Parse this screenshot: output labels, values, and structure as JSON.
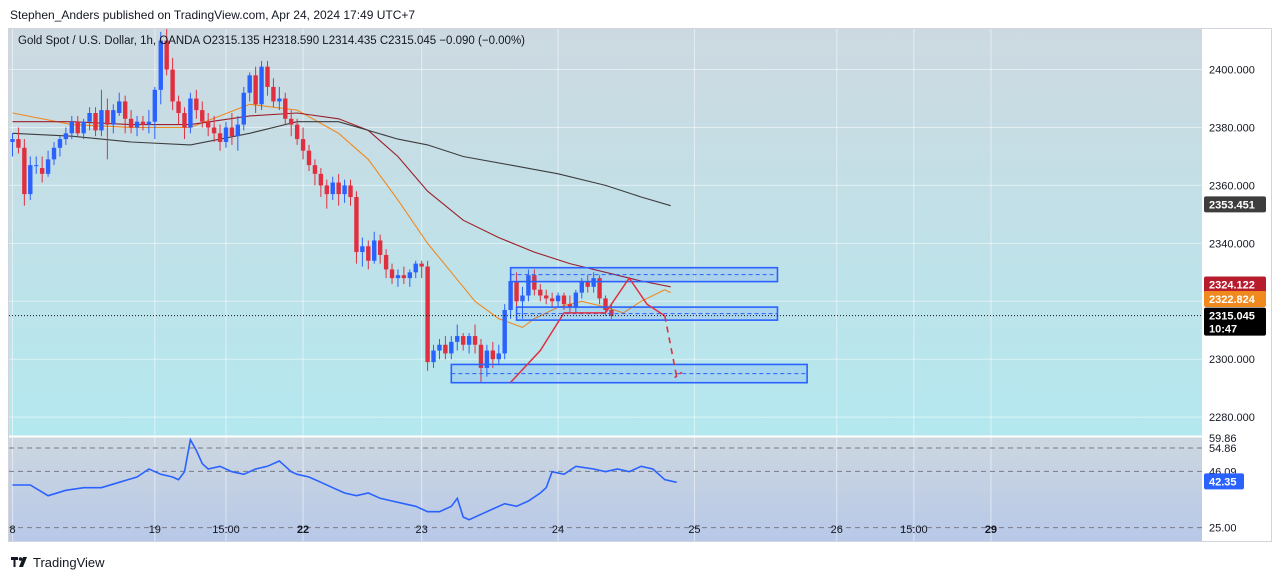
{
  "header": {
    "published_by": "Stephen_Anders published on TradingView.com, Apr 24, 2024 17:49 UTC+7"
  },
  "footer": {
    "brand": "TradingView",
    "logo_icon": "tradingview-logo-icon"
  },
  "colors": {
    "up": "#2962ff",
    "down": "#e03040",
    "ma_fast": "#f0891e",
    "ma_mid": "#9c1f2a",
    "ma_slow": "#3d3d3d",
    "rsi_line": "#2962ff",
    "zone": "#2962ff",
    "projection": "#e03040",
    "bg_top": "#cdd9e1",
    "bg_bottom": "#b4e8ef"
  },
  "chart_data": {
    "type": "line",
    "title": "Gold Spot / U.S. Dollar, 1h, OANDA",
    "ohlc_text": {
      "open": "O2315.135",
      "high": "H2318.590",
      "low": "L2314.435",
      "close": "C2315.045",
      "change": "−0.090 (−0.00%)"
    },
    "x_tick_labels": [
      {
        "i": 0,
        "label": "8",
        "bold": false
      },
      {
        "i": 24,
        "label": "19",
        "bold": false
      },
      {
        "i": 36,
        "label": "15:00",
        "bold": false
      },
      {
        "i": 49,
        "label": "22",
        "bold": true
      },
      {
        "i": 69,
        "label": "23",
        "bold": false
      },
      {
        "i": 92,
        "label": "24",
        "bold": false
      },
      {
        "i": 115,
        "label": "25",
        "bold": false
      },
      {
        "i": 139,
        "label": "26",
        "bold": false
      },
      {
        "i": 152,
        "label": "15:00",
        "bold": false
      },
      {
        "i": 165,
        "label": "29",
        "bold": true
      }
    ],
    "x_range": [
      0,
      180
    ],
    "y_range": [
      2273.5,
      2414
    ],
    "y_ticks": [
      2280,
      2300,
      2320,
      2340,
      2360,
      2380,
      2400
    ],
    "y_tick_labels": [
      "2280.000",
      "2300.000",
      "2320.000",
      "2340.000",
      "2360.000",
      "2380.000",
      "2400.000"
    ],
    "price_tags": [
      {
        "label": "2353.451",
        "value": 2353.451,
        "color": "#3d3d3d",
        "text_color": "#ffffff"
      },
      {
        "label": "2324.122",
        "value": 2325.8,
        "color": "#b71c2c",
        "text_color": "#ffffff"
      },
      {
        "label": "2322.824",
        "value": 2320.8,
        "color": "#f0891e",
        "text_color": "#ffffff"
      },
      {
        "label": "2315.045",
        "value": 2315.045,
        "color": "#000000",
        "text_color": "#ffffff",
        "sub": "10:47"
      }
    ],
    "current_price": 2315.045,
    "candles": [
      [
        2375,
        2378,
        2370,
        2376
      ],
      [
        2376,
        2380,
        2371,
        2373
      ],
      [
        2373,
        2376,
        2353,
        2357
      ],
      [
        2357,
        2370,
        2355,
        2367
      ],
      [
        2367,
        2370,
        2364,
        2367
      ],
      [
        2366,
        2370,
        2361,
        2364
      ],
      [
        2364,
        2372,
        2363,
        2369
      ],
      [
        2369,
        2375,
        2367,
        2373
      ],
      [
        2373,
        2377,
        2370,
        2376
      ],
      [
        2376,
        2380,
        2374,
        2378
      ],
      [
        2378,
        2384,
        2376,
        2382
      ],
      [
        2382,
        2384,
        2377,
        2378
      ],
      [
        2378,
        2383,
        2376,
        2382
      ],
      [
        2382,
        2387,
        2379,
        2385
      ],
      [
        2385,
        2387,
        2377,
        2379
      ],
      [
        2379,
        2393,
        2377,
        2386
      ],
      [
        2386,
        2390,
        2369,
        2381
      ],
      [
        2381,
        2388,
        2378,
        2386
      ],
      [
        2385,
        2392,
        2384,
        2389
      ],
      [
        2389,
        2391,
        2378,
        2383
      ],
      [
        2383,
        2386,
        2378,
        2380
      ],
      [
        2380,
        2384,
        2377,
        2382
      ],
      [
        2382,
        2384,
        2379,
        2381
      ],
      [
        2381,
        2386,
        2378,
        2382
      ],
      [
        2382,
        2394,
        2376,
        2393
      ],
      [
        2393,
        2413,
        2388,
        2410
      ],
      [
        2410,
        2416,
        2398,
        2400
      ],
      [
        2400,
        2404,
        2386,
        2389
      ],
      [
        2389,
        2391,
        2381,
        2385
      ],
      [
        2385,
        2387,
        2376,
        2380
      ],
      [
        2380,
        2392,
        2378,
        2390
      ],
      [
        2390,
        2393,
        2383,
        2386
      ],
      [
        2386,
        2389,
        2380,
        2382
      ],
      [
        2382,
        2385,
        2377,
        2380
      ],
      [
        2380,
        2384,
        2375,
        2378
      ],
      [
        2378,
        2381,
        2372,
        2375
      ],
      [
        2375,
        2382,
        2373,
        2380
      ],
      [
        2380,
        2385,
        2374,
        2377
      ],
      [
        2377,
        2384,
        2372,
        2381
      ],
      [
        2381,
        2394,
        2379,
        2392
      ],
      [
        2392,
        2399,
        2389,
        2398
      ],
      [
        2398,
        2401,
        2385,
        2388
      ],
      [
        2388,
        2403,
        2386,
        2401
      ],
      [
        2401,
        2403,
        2391,
        2394
      ],
      [
        2394,
        2397,
        2387,
        2389
      ],
      [
        2389,
        2394,
        2386,
        2390
      ],
      [
        2390,
        2392,
        2381,
        2383
      ],
      [
        2383,
        2386,
        2377,
        2381
      ],
      [
        2381,
        2383,
        2374,
        2376
      ],
      [
        2376,
        2380,
        2369,
        2372
      ],
      [
        2372,
        2374,
        2365,
        2367
      ],
      [
        2367,
        2369,
        2360,
        2364
      ],
      [
        2364,
        2366,
        2356,
        2360
      ],
      [
        2360,
        2362,
        2352,
        2357
      ],
      [
        2357,
        2363,
        2355,
        2361
      ],
      [
        2361,
        2364,
        2353,
        2357
      ],
      [
        2357,
        2362,
        2354,
        2360
      ],
      [
        2360,
        2362,
        2353,
        2356
      ],
      [
        2356,
        2358,
        2333,
        2337
      ],
      [
        2337,
        2342,
        2332,
        2339
      ],
      [
        2339,
        2341,
        2331,
        2334
      ],
      [
        2334,
        2344,
        2333,
        2341
      ],
      [
        2341,
        2343,
        2333,
        2336
      ],
      [
        2336,
        2338,
        2328,
        2331
      ],
      [
        2331,
        2333,
        2326,
        2328
      ],
      [
        2328,
        2331,
        2325,
        2329
      ],
      [
        2329,
        2332,
        2326,
        2328
      ],
      [
        2328,
        2331,
        2325,
        2330
      ],
      [
        2330,
        2334,
        2328,
        2333
      ],
      [
        2333,
        2334,
        2328,
        2332
      ],
      [
        2332,
        2334,
        2296,
        2299
      ],
      [
        2299,
        2305,
        2297,
        2303
      ],
      [
        2303,
        2307,
        2300,
        2305
      ],
      [
        2305,
        2308,
        2300,
        2302
      ],
      [
        2302,
        2308,
        2300,
        2306
      ],
      [
        2306,
        2312,
        2303,
        2308
      ],
      [
        2308,
        2309,
        2303,
        2305
      ],
      [
        2305,
        2309,
        2302,
        2308
      ],
      [
        2308,
        2312,
        2302,
        2305
      ],
      [
        2305,
        2307,
        2292,
        2297
      ],
      [
        2297,
        2305,
        2294,
        2303
      ],
      [
        2303,
        2306,
        2297,
        2300
      ],
      [
        2300,
        2305,
        2298,
        2302
      ],
      [
        2302,
        2319,
        2300,
        2317
      ],
      [
        2317,
        2330,
        2314,
        2327
      ],
      [
        2327,
        2330,
        2318,
        2320
      ],
      [
        2320,
        2325,
        2314,
        2322
      ],
      [
        2322,
        2331,
        2320,
        2329
      ],
      [
        2329,
        2331,
        2322,
        2324
      ],
      [
        2324,
        2326,
        2320,
        2322
      ],
      [
        2322,
        2324,
        2319,
        2321
      ],
      [
        2321,
        2323,
        2318,
        2320
      ],
      [
        2320,
        2323,
        2318,
        2322
      ],
      [
        2322,
        2323,
        2317,
        2319
      ],
      [
        2319,
        2322,
        2316,
        2318
      ],
      [
        2318,
        2324,
        2316,
        2323
      ],
      [
        2323,
        2328,
        2321,
        2327
      ],
      [
        2327,
        2329,
        2323,
        2325
      ],
      [
        2325,
        2330,
        2323,
        2328
      ],
      [
        2328,
        2329,
        2319,
        2321
      ],
      [
        2321,
        2322,
        2315,
        2317
      ],
      [
        2317,
        2319,
        2314,
        2315
      ]
    ],
    "series": [
      {
        "name": "",
        "style": "ma_fast",
        "points": [
          [
            0,
            2385
          ],
          [
            10,
            2381
          ],
          [
            20,
            2380
          ],
          [
            30,
            2380
          ],
          [
            40,
            2388
          ],
          [
            48,
            2386
          ],
          [
            55,
            2378
          ],
          [
            60,
            2369
          ],
          [
            65,
            2355
          ],
          [
            70,
            2340
          ],
          [
            74,
            2330
          ],
          [
            78,
            2320
          ],
          [
            82,
            2314
          ],
          [
            86,
            2311
          ],
          [
            88,
            2314
          ],
          [
            92,
            2318
          ],
          [
            96,
            2320
          ],
          [
            100,
            2318
          ],
          [
            103,
            2316
          ],
          [
            106,
            2320
          ],
          [
            110,
            2324
          ],
          [
            111,
            2323
          ]
        ]
      },
      {
        "name": "",
        "style": "ma_mid",
        "points": [
          [
            0,
            2382
          ],
          [
            10,
            2382
          ],
          [
            20,
            2381
          ],
          [
            30,
            2381
          ],
          [
            40,
            2384
          ],
          [
            48,
            2385
          ],
          [
            55,
            2383
          ],
          [
            60,
            2379
          ],
          [
            65,
            2370
          ],
          [
            70,
            2358
          ],
          [
            76,
            2348
          ],
          [
            82,
            2342
          ],
          [
            88,
            2337
          ],
          [
            94,
            2333
          ],
          [
            100,
            2330
          ],
          [
            106,
            2327
          ],
          [
            111,
            2325
          ]
        ]
      },
      {
        "name": "",
        "style": "ma_slow",
        "points": [
          [
            0,
            2378
          ],
          [
            10,
            2377
          ],
          [
            20,
            2375
          ],
          [
            30,
            2374
          ],
          [
            40,
            2378
          ],
          [
            48,
            2382
          ],
          [
            55,
            2382
          ],
          [
            60,
            2379
          ],
          [
            65,
            2376
          ],
          [
            70,
            2374
          ],
          [
            76,
            2370
          ],
          [
            84,
            2367
          ],
          [
            92,
            2364
          ],
          [
            100,
            2360
          ],
          [
            106,
            2356
          ],
          [
            111,
            2353
          ]
        ]
      }
    ],
    "zones": [
      {
        "x0": 84,
        "x1": 129,
        "y0": 2326.8,
        "y1": 2331.6
      },
      {
        "x0": 85,
        "x1": 129,
        "y0": 2313.5,
        "y1": 2318.0
      },
      {
        "x0": 74,
        "x1": 134,
        "y0": 2291.9,
        "y1": 2298.2
      }
    ],
    "projection": [
      [
        84,
        2292
      ],
      [
        89,
        2303
      ],
      [
        93,
        2316
      ],
      [
        100,
        2316
      ],
      [
        104,
        2328
      ],
      [
        107,
        2319
      ],
      [
        110,
        2315
      ],
      [
        112,
        2294
      ]
    ],
    "rsi": {
      "y_range": [
        20,
        59
      ],
      "levels": [
        54.86,
        46.09,
        25.0
      ],
      "tick_labels": [
        "54.86",
        "46.09",
        "25.00"
      ],
      "value_label": "42.35",
      "value": 42.35,
      "top_label": "59.86",
      "points": [
        [
          0,
          41
        ],
        [
          3,
          41
        ],
        [
          6,
          37
        ],
        [
          9,
          39
        ],
        [
          12,
          40
        ],
        [
          15,
          40
        ],
        [
          18,
          42
        ],
        [
          21,
          44
        ],
        [
          23,
          47
        ],
        [
          25,
          45
        ],
        [
          27,
          44
        ],
        [
          28,
          43
        ],
        [
          29,
          46
        ],
        [
          30,
          58
        ],
        [
          31,
          54
        ],
        [
          32,
          49
        ],
        [
          33,
          47
        ],
        [
          35,
          48
        ],
        [
          37,
          46
        ],
        [
          39,
          45
        ],
        [
          41,
          47
        ],
        [
          43,
          48
        ],
        [
          45,
          50
        ],
        [
          46,
          48
        ],
        [
          47,
          46
        ],
        [
          48,
          45
        ],
        [
          50,
          44
        ],
        [
          52,
          42
        ],
        [
          54,
          40
        ],
        [
          56,
          38
        ],
        [
          58,
          37
        ],
        [
          60,
          38
        ],
        [
          62,
          36
        ],
        [
          64,
          35
        ],
        [
          66,
          34
        ],
        [
          68,
          33
        ],
        [
          70,
          31
        ],
        [
          72,
          31
        ],
        [
          74,
          33
        ],
        [
          75,
          36
        ],
        [
          76,
          29
        ],
        [
          77,
          28
        ],
        [
          79,
          30
        ],
        [
          81,
          32
        ],
        [
          83,
          34
        ],
        [
          85,
          33
        ],
        [
          87,
          35
        ],
        [
          89,
          38
        ],
        [
          90,
          40
        ],
        [
          91,
          46
        ],
        [
          93,
          45
        ],
        [
          95,
          48
        ],
        [
          98,
          47
        ],
        [
          100,
          46
        ],
        [
          102,
          47
        ],
        [
          104,
          46
        ],
        [
          106,
          48
        ],
        [
          108,
          47
        ],
        [
          110,
          43
        ],
        [
          112,
          42
        ]
      ]
    }
  }
}
